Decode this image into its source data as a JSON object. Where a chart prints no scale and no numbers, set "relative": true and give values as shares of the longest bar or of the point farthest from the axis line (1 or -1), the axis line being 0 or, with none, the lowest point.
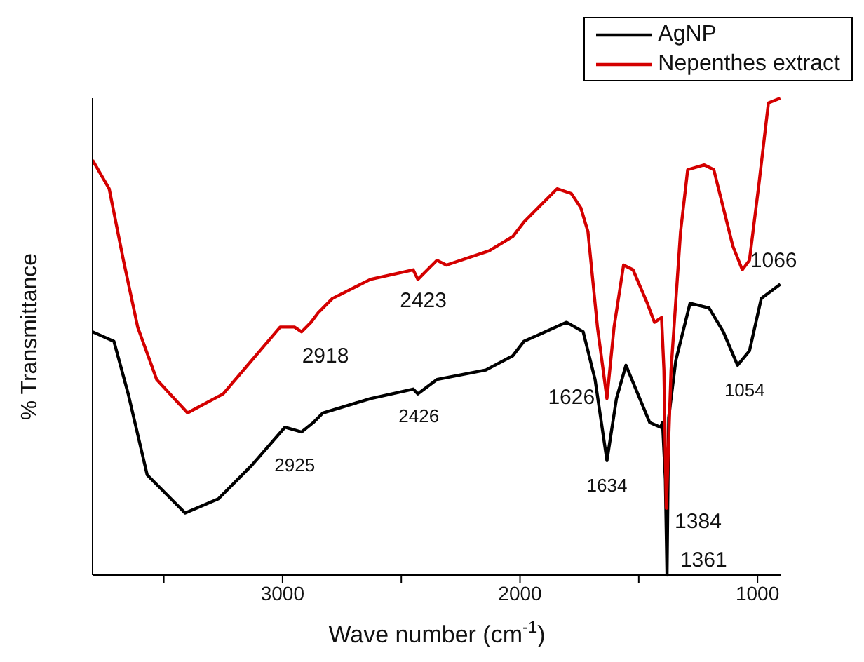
{
  "chart_data": {
    "type": "line",
    "relative": true,
    "xlabel": "Wave number (cm$^{-1}$)",
    "ylabel": "% Transmittance",
    "xlim": [
      3800,
      900
    ],
    "xticks": [
      {
        "value": 3500,
        "label": null
      },
      3000,
      {
        "value": 2500,
        "label": null
      },
      2000,
      {
        "value": 1500,
        "label": null
      },
      1000
    ],
    "grid": false,
    "legend": "top right",
    "marker": "none",
    "line_style": "solid",
    "series": [
      {
        "name": "AgNP",
        "color": "#000000",
        "x": [
          3800,
          3710,
          3650,
          3570,
          3410,
          3270,
          3130,
          2990,
          2920,
          2870,
          2830,
          2630,
          2450,
          2430,
          2350,
          2144,
          2030,
          1984,
          1804,
          1734,
          1684,
          1634,
          1594,
          1554,
          1504,
          1454,
          1408,
          1400,
          1388,
          1381,
          1374,
          1344,
          1284,
          1204,
          1144,
          1084,
          1034,
          984,
          904
        ],
        "values": [
          0.51,
          0.49,
          0.38,
          0.21,
          0.13,
          0.16,
          0.23,
          0.31,
          0.3,
          0.32,
          0.34,
          0.37,
          0.39,
          0.38,
          0.41,
          0.43,
          0.46,
          0.49,
          0.53,
          0.51,
          0.41,
          0.24,
          0.37,
          0.44,
          0.38,
          0.32,
          0.31,
          0.32,
          0.2,
          0,
          0.33,
          0.45,
          0.57,
          0.56,
          0.51,
          0.44,
          0.47,
          0.58,
          0.61
        ]
      },
      {
        "name": "Nepenthes extract",
        "color": "#d40000",
        "x": [
          3800,
          3730,
          3670,
          3610,
          3530,
          3400,
          3250,
          3130,
          3010,
          2950,
          2920,
          2880,
          2850,
          2790,
          2630,
          2450,
          2430,
          2390,
          2350,
          2310,
          2130,
          2030,
          1984,
          1844,
          1784,
          1744,
          1714,
          1674,
          1634,
          1604,
          1564,
          1524,
          1464,
          1434,
          1404,
          1394,
          1384,
          1364,
          1324,
          1294,
          1224,
          1184,
          1144,
          1104,
          1064,
          1034,
          994,
          954,
          904
        ],
        "values": [
          0.87,
          0.81,
          0.66,
          0.52,
          0.41,
          0.34,
          0.38,
          0.45,
          0.52,
          0.52,
          0.51,
          0.53,
          0.55,
          0.58,
          0.62,
          0.64,
          0.62,
          0.64,
          0.66,
          0.65,
          0.68,
          0.71,
          0.74,
          0.81,
          0.8,
          0.77,
          0.72,
          0.52,
          0.37,
          0.52,
          0.65,
          0.64,
          0.57,
          0.53,
          0.54,
          0.43,
          0.14,
          0.43,
          0.72,
          0.85,
          0.86,
          0.85,
          0.77,
          0.69,
          0.64,
          0.66,
          0.82,
          0.99,
          1.0
        ]
      }
    ],
    "annotations": [
      {
        "text": "2918",
        "x": 2918,
        "y": 0.51
      },
      {
        "text": "2423",
        "x": 2423,
        "y": 0.62
      },
      {
        "text": "1626",
        "x": 1626,
        "y": 0.37
      },
      {
        "text": "1384",
        "x": 1384,
        "y": 0.14
      },
      {
        "text": "1066",
        "x": 1066,
        "y": 0.64
      },
      {
        "text": "2925",
        "x": 2925,
        "y": 0.3
      },
      {
        "text": "2426",
        "x": 2426,
        "y": 0.38
      },
      {
        "text": "1634",
        "x": 1634,
        "y": 0.24
      },
      {
        "text": "1361",
        "x": 1361,
        "y": 0
      },
      {
        "text": "1054",
        "x": 1054,
        "y": 0.44
      }
    ]
  }
}
